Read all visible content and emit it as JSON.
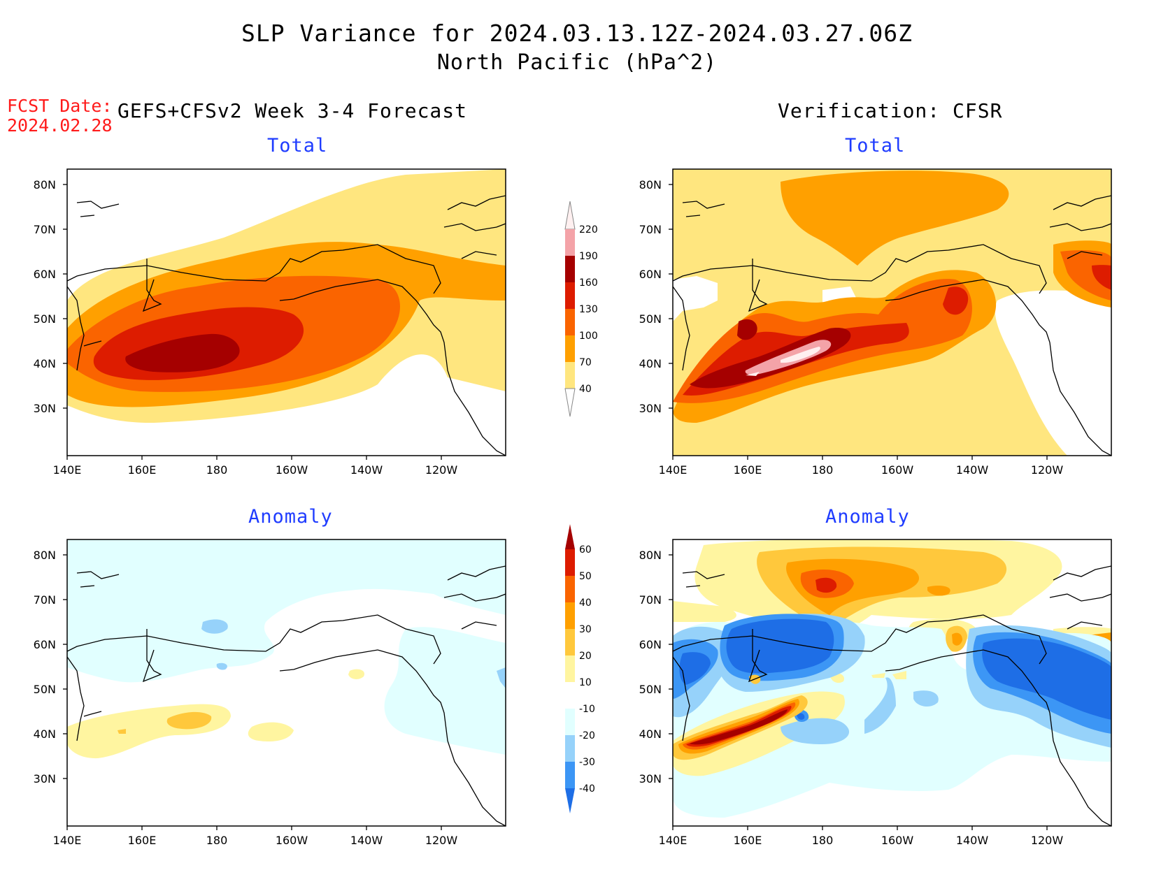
{
  "title": "SLP Variance for 2024.03.13.12Z-2024.03.27.06Z",
  "subtitle": "North Pacific (hPa^2)",
  "fcst_label": "FCST Date:",
  "fcst_date": "2024.02.28",
  "left_header": "GEFS+CFSv2 Week 3-4 Forecast",
  "right_header": "Verification: CFSR",
  "panel_titles": {
    "total": "Total",
    "anomaly": "Anomaly"
  },
  "lat_labels": [
    "80N",
    "70N",
    "60N",
    "50N",
    "40N",
    "30N"
  ],
  "lon_labels": [
    "140E",
    "160E",
    "180",
    "160W",
    "140W",
    "120W"
  ],
  "total_colorbar": {
    "levels": [
      "220",
      "190",
      "160",
      "130",
      "100",
      "70",
      "40"
    ],
    "colors": [
      "#fff0f0",
      "#f4a3a8",
      "#a50000",
      "#dd1c00",
      "#fa6400",
      "#ffa000",
      "#ffe67f"
    ]
  },
  "anomaly_colorbar": {
    "levels": [
      "60",
      "50",
      "40",
      "30",
      "20",
      "10",
      "-10",
      "-20",
      "-30",
      "-40"
    ],
    "colors": [
      "#a50000",
      "#dd1c00",
      "#fa6400",
      "#ffa000",
      "#ffc83c",
      "#fff5a0",
      "#ffffff",
      "#e1ffff",
      "#96d2fa",
      "#3c96f5",
      "#1e6ee6"
    ]
  },
  "fill_colors": {
    "t1": "#ffe67f",
    "t2": "#ffa000",
    "t3": "#fa6400",
    "t4": "#dd1c00",
    "t5": "#a50000",
    "t6": "#f4a3a8",
    "t7": "#fff0f0",
    "p1": "#fff5a0",
    "p2": "#ffc83c",
    "p3": "#ffa000",
    "p4": "#fa6400",
    "p5": "#dd1c00",
    "p6": "#a50000",
    "n1": "#e1ffff",
    "n2": "#96d2fa",
    "n3": "#3c96f5",
    "n4": "#1e6ee6"
  }
}
